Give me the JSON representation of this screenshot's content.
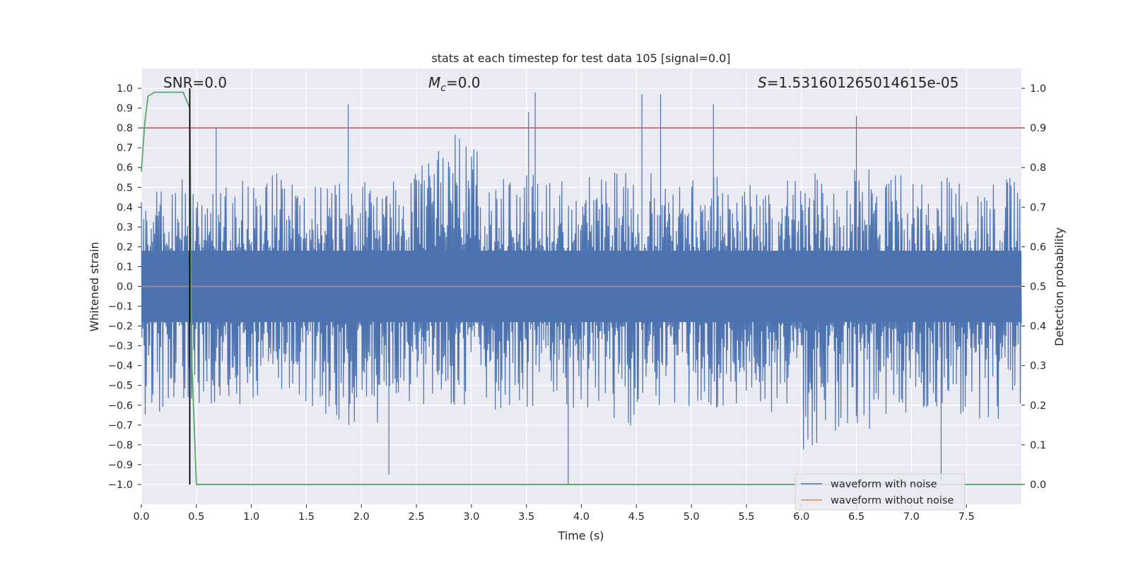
{
  "chart_data": {
    "type": "line",
    "title": "stats at each timestep for test data 105 [signal=0.0]",
    "xlabel": "Time (s)",
    "ylabel": "Whitened strain",
    "y2label": "Detection probability",
    "xlim": [
      0.0,
      8.0
    ],
    "ylim": [
      -1.1,
      1.1
    ],
    "y2lim": [
      -0.05,
      1.05
    ],
    "x_ticks": [
      0.0,
      0.5,
      1.0,
      1.5,
      2.0,
      2.5,
      3.0,
      3.5,
      4.0,
      4.5,
      5.0,
      5.5,
      6.0,
      6.5,
      7.0,
      7.5
    ],
    "x_tick_labels": [
      "0.0",
      "0.5",
      "1.0",
      "1.5",
      "2.0",
      "2.5",
      "3.0",
      "3.5",
      "4.0",
      "4.5",
      "5.0",
      "5.5",
      "6.0",
      "6.5",
      "7.0",
      "7.5"
    ],
    "y_ticks": [
      1.0,
      0.9,
      0.8,
      0.7,
      0.6,
      0.5,
      0.4,
      0.3,
      0.2,
      0.1,
      0.0,
      -0.1,
      -0.2,
      -0.3,
      -0.4,
      -0.5,
      -0.6,
      -0.7,
      -0.8,
      -0.9,
      -1.0
    ],
    "y_tick_labels": [
      "1.0",
      "0.9",
      "0.8",
      "0.7",
      "0.6",
      "0.5",
      "0.4",
      "0.3",
      "0.2",
      "0.1",
      "0.0",
      "−0.1",
      "−0.2",
      "−0.3",
      "−0.4",
      "−0.5",
      "−0.6",
      "−0.7",
      "−0.8",
      "−0.9",
      "−1.0"
    ],
    "y2_ticks": [
      1.0,
      0.9,
      0.8,
      0.7,
      0.6,
      0.5,
      0.4,
      0.3,
      0.2,
      0.1,
      0.0
    ],
    "y2_tick_labels": [
      "1.0",
      "0.9",
      "0.8",
      "0.7",
      "0.6",
      "0.5",
      "0.4",
      "0.3",
      "0.2",
      "0.1",
      "0.0"
    ],
    "grid": true,
    "legend_position": "lower-right",
    "annotations": {
      "snr": "SNR=0.0",
      "mc_symbol": "M",
      "mc_sub": "c",
      "mc_value": "=0.0",
      "s_symbol": "S",
      "s_value": "=1.531601265014615e-05"
    },
    "series": [
      {
        "name": "waveform with noise",
        "axis": "left",
        "color": "#4c72b0",
        "note": "dense noise, envelope approx",
        "envelope_max": [
          0.45,
          0.55,
          0.52,
          0.6,
          0.5,
          0.55,
          0.53,
          0.92,
          0.55,
          0.6,
          0.58,
          0.62,
          0.55,
          0.6,
          0.5,
          0.55,
          0.62,
          0.58,
          0.6,
          0.55,
          0.58
        ],
        "envelope_min": [
          -0.7,
          -0.6,
          -0.6,
          -0.58,
          -0.62,
          -0.75,
          -0.6,
          -0.62,
          -0.65,
          -0.6,
          -0.62,
          -0.72,
          -0.6,
          -0.62,
          -0.58,
          -0.85,
          -0.7,
          -0.75,
          -0.6,
          -0.7,
          -0.65
        ],
        "peaks_x": [
          0.68,
          1.88,
          2.25,
          3.52,
          3.58,
          3.88,
          4.55,
          4.72,
          5.2,
          6.5,
          7.27
        ],
        "peaks_y": [
          0.8,
          0.92,
          -0.95,
          0.88,
          0.98,
          -1.0,
          0.97,
          0.97,
          0.92,
          0.86,
          -0.98
        ]
      },
      {
        "name": "waveform without noise",
        "axis": "left",
        "color": "#dd8452",
        "x": [
          0.0,
          8.0
        ],
        "y": [
          0.0,
          0.0
        ]
      },
      {
        "name": "detection probability",
        "axis": "right",
        "color": "#55a868",
        "x": [
          0.0,
          0.03,
          0.06,
          0.12,
          0.2,
          0.38,
          0.44,
          0.46,
          0.5,
          8.0
        ],
        "y": [
          0.79,
          0.91,
          0.98,
          0.99,
          0.99,
          0.99,
          0.95,
          0.3,
          0.0,
          0.0
        ]
      }
    ],
    "hlines": [
      {
        "axis": "right",
        "y": 0.9,
        "color": "#c44e52"
      }
    ],
    "vlines": [
      {
        "axis": "left",
        "x": 0.44,
        "ymin": -1.0,
        "ymax": 1.0,
        "color": "#000000"
      }
    ]
  }
}
